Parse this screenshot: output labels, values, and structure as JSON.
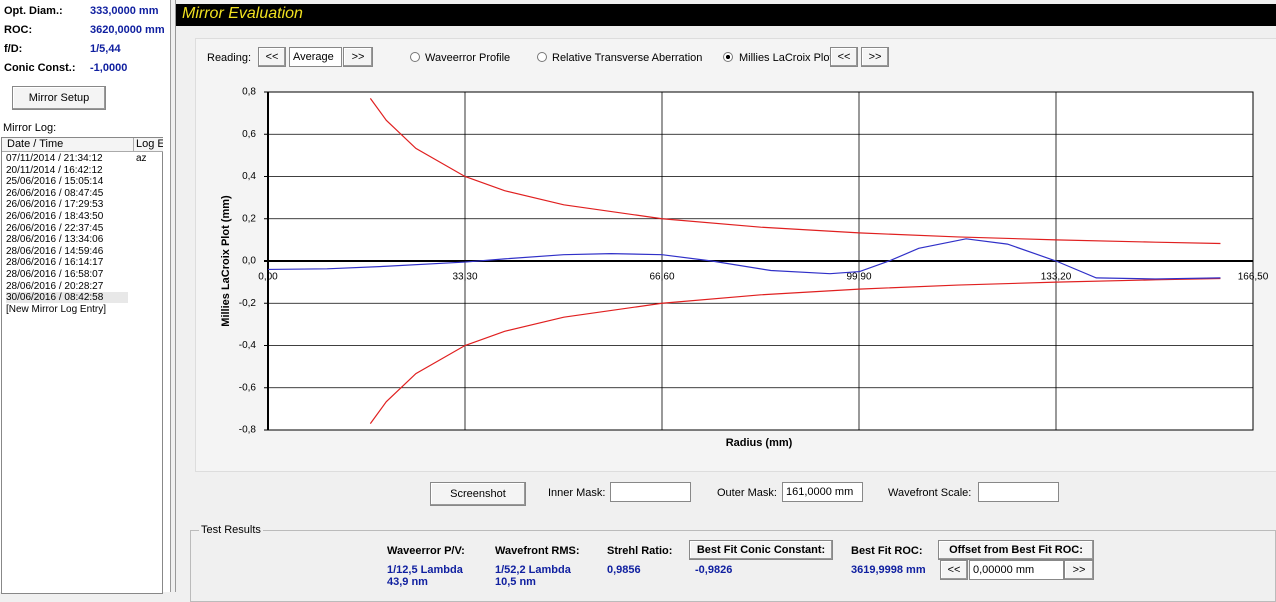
{
  "left_panel": {
    "params": [
      {
        "label": "Opt. Diam.:",
        "value": "333,0000 mm"
      },
      {
        "label": "ROC:",
        "value": "3620,0000 mm"
      },
      {
        "label": "f/D:",
        "value": "1/5,44"
      },
      {
        "label": "Conic Const.:",
        "value": "-1,0000"
      }
    ],
    "setup_button": "Mirror Setup",
    "log_label": "Mirror Log:",
    "log_headers": [
      "Date / Time",
      "Log E"
    ],
    "log_rows": [
      {
        "date": "07/11/2014 / 21:34:12",
        "entry": "az"
      },
      {
        "date": "20/11/2014 / 16:42:12"
      },
      {
        "date": "25/06/2016 / 15:05:14"
      },
      {
        "date": "26/06/2016 / 08:47:45"
      },
      {
        "date": "26/06/2016 / 17:29:53"
      },
      {
        "date": "26/06/2016 / 18:43:50"
      },
      {
        "date": "26/06/2016 / 22:37:45"
      },
      {
        "date": "28/06/2016 / 13:34:06"
      },
      {
        "date": "28/06/2016 / 14:59:46"
      },
      {
        "date": "28/06/2016 / 16:14:17"
      },
      {
        "date": "28/06/2016 / 16:58:07"
      },
      {
        "date": "28/06/2016 / 20:28:27"
      },
      {
        "date": "30/06/2016 / 08:42:58"
      },
      {
        "date": "[New Mirror Log Entry]"
      }
    ]
  },
  "title": "Mirror Evaluation",
  "controls": {
    "reading_label": "Reading:",
    "prev": "<<",
    "reading": "Average",
    "next": ">>",
    "options": [
      "Waveerror Profile",
      "Relative Transverse Aberration",
      "Millies LaCroix Plot"
    ],
    "plot_prev": "<<",
    "plot_next": ">>"
  },
  "chart_data": {
    "type": "line",
    "x_label": "Radius (mm)",
    "y_label": "Millies LaCroix Plot (mm)",
    "xlim": [
      0,
      166.5
    ],
    "ylim": [
      -0.8,
      0.8
    ],
    "xticks": [
      {
        "value": 0,
        "label": "0,00"
      },
      {
        "value": 33.3,
        "label": "33,30"
      },
      {
        "value": 66.6,
        "label": "66,60"
      },
      {
        "value": 99.9,
        "label": "99,90"
      },
      {
        "value": 133.2,
        "label": "133,20"
      },
      {
        "value": 166.5,
        "label": "166,50"
      }
    ],
    "yticks": [
      {
        "value": 0.8,
        "label": "0,8"
      },
      {
        "value": 0.6,
        "label": "0,6"
      },
      {
        "value": 0.4,
        "label": "0,4"
      },
      {
        "value": 0.2,
        "label": "0,2"
      },
      {
        "value": 0,
        "label": "0,0"
      },
      {
        "value": -0.2,
        "label": "-0,2"
      },
      {
        "value": -0.4,
        "label": "-0,4"
      },
      {
        "value": -0.6,
        "label": "-0,6"
      },
      {
        "value": -0.8,
        "label": "-0,8"
      }
    ],
    "grid": true,
    "series": [
      {
        "color": "#e02020",
        "x": [
          17.3,
          20,
          25,
          33.3,
          40,
          50,
          66.6,
          83.3,
          99.9,
          116.6,
          133.2,
          150,
          161
        ],
        "values": [
          0.77,
          0.666,
          0.533,
          0.4,
          0.333,
          0.266,
          0.2,
          0.16,
          0.133,
          0.114,
          0.1,
          0.089,
          0.083
        ]
      },
      {
        "color": "#e02020",
        "x": [
          17.3,
          20,
          25,
          33.3,
          40,
          50,
          66.6,
          83.3,
          99.9,
          116.6,
          133.2,
          150,
          161
        ],
        "values": [
          -0.77,
          -0.666,
          -0.533,
          -0.4,
          -0.333,
          -0.266,
          -0.2,
          -0.16,
          -0.133,
          -0.114,
          -0.1,
          -0.089,
          -0.083
        ]
      },
      {
        "color": "#3030c8",
        "x": [
          0,
          10,
          20,
          33.3,
          40,
          50,
          58,
          66.6,
          75,
          85,
          95,
          100,
          105,
          110,
          118,
          125,
          133.2,
          140,
          150,
          161
        ],
        "values": [
          -0.04,
          -0.037,
          -0.025,
          -0.005,
          0.01,
          0.03,
          0.035,
          0.03,
          0,
          -0.045,
          -0.06,
          -0.05,
          0,
          0.06,
          0.105,
          0.08,
          0,
          -0.08,
          -0.085,
          -0.08
        ]
      }
    ]
  },
  "bottom": {
    "screenshot": "Screenshot",
    "inner_mask": "Inner Mask:",
    "outer_mask": "Outer Mask:",
    "outer_mask_value": "161,0000 mm",
    "wavefront_scale": "Wavefront Scale:"
  },
  "test_results": {
    "title": "Test Results",
    "pv_label": "Waveerror P/V:",
    "pv_lambda": "1/12,5 Lambda",
    "pv_nm": "43,9 nm",
    "rms_label": "Wavefront RMS:",
    "rms_lambda": "1/52,2 Lambda",
    "rms_nm": "10,5 nm",
    "strehl_label": "Strehl Ratio:",
    "strehl": "0,9856",
    "conic_button": "Best Fit Conic Constant:",
    "conic": "-0,9826",
    "roc_label": "Best Fit ROC:",
    "roc": "3619,9998 mm",
    "offset_button": "Offset from Best Fit ROC:",
    "offset_prev": "<<",
    "offset": "0,00000 mm",
    "offset_next": ">>"
  }
}
